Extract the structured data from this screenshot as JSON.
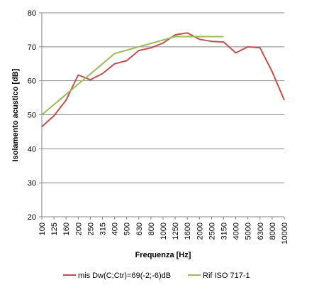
{
  "chart_data": {
    "type": "line",
    "xlabel": "Frequenza [Hz]",
    "ylabel": "Isolamento acustico [dB]",
    "ylim": [
      20,
      80
    ],
    "yticks": [
      20,
      30,
      40,
      50,
      60,
      70,
      80
    ],
    "grid": "horizontal",
    "legend_position": "bottom",
    "categories": [
      "100",
      "125",
      "160",
      "200",
      "250",
      "315",
      "400",
      "500",
      "630",
      "800",
      "1000",
      "1250",
      "1600",
      "2000",
      "2500",
      "3150",
      "4000",
      "5000",
      "6300",
      "8000",
      "10000"
    ],
    "series": [
      {
        "name": "mis Dw(C;Ctr)=69(-2;-6)dB",
        "color": "#c0504d",
        "values": [
          46.5,
          49.7,
          54.3,
          61.7,
          60.3,
          62.1,
          65.0,
          65.9,
          68.9,
          69.7,
          71.1,
          73.5,
          74.1,
          72.2,
          71.6,
          71.4,
          68.2,
          70.0,
          69.7,
          62.7,
          54.3
        ]
      },
      {
        "name": "Rif ISO 717-1",
        "color": "#9bbb59",
        "values": [
          50,
          53,
          56,
          59,
          62,
          65,
          68,
          69,
          70,
          71,
          72,
          73,
          73,
          73,
          73,
          73,
          null,
          null,
          null,
          null,
          null
        ]
      }
    ]
  }
}
